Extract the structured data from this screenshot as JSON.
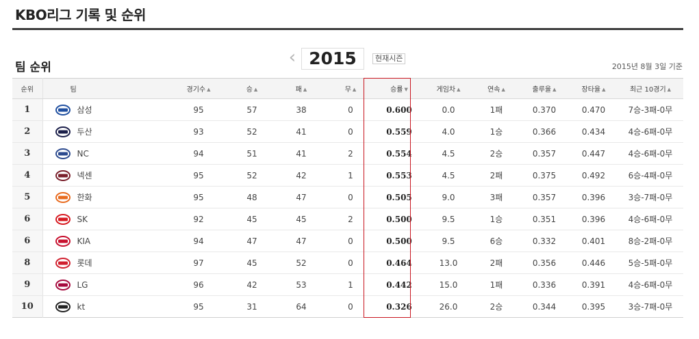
{
  "header": {
    "title": "KBO리그 기록 및 순위"
  },
  "section": {
    "title": "팀 순위",
    "season": "2015",
    "current_season_label": "현재시즌",
    "prev_icon": "chevron-left-icon",
    "next_icon": "chevron-right-icon",
    "as_of": "2015년 8월 3일 기준"
  },
  "accent": {
    "highlight": "#c8141e",
    "rule": "#3b3b3b"
  },
  "table": {
    "columns": {
      "rank": "순위",
      "team": "팀",
      "games": "경기수",
      "wins": "승",
      "losses": "패",
      "draws": "무",
      "pct": "승률",
      "gb": "게임차",
      "streak": "연속",
      "obp": "출루율",
      "slg": "장타율",
      "last10": "최근 10경기"
    },
    "rows": [
      {
        "rank": "1",
        "team": "삼성",
        "logo": "samsung-lions-logo",
        "logo_color": "#1f4fa0",
        "games": "95",
        "wins": "57",
        "losses": "38",
        "draws": "0",
        "pct": "0.600",
        "gb": "0.0",
        "streak": "1패",
        "obp": "0.370",
        "slg": "0.470",
        "last10": "7승-3패-0무"
      },
      {
        "rank": "2",
        "team": "두산",
        "logo": "doosan-bears-logo",
        "logo_color": "#1b1f4a",
        "games": "93",
        "wins": "52",
        "losses": "41",
        "draws": "0",
        "pct": "0.559",
        "gb": "4.0",
        "streak": "1승",
        "obp": "0.366",
        "slg": "0.434",
        "last10": "4승-6패-0무"
      },
      {
        "rank": "3",
        "team": "NC",
        "logo": "nc-dinos-logo",
        "logo_color": "#2d4b8f",
        "games": "94",
        "wins": "51",
        "losses": "41",
        "draws": "2",
        "pct": "0.554",
        "gb": "4.5",
        "streak": "2승",
        "obp": "0.357",
        "slg": "0.447",
        "last10": "4승-6패-0무"
      },
      {
        "rank": "4",
        "team": "넥센",
        "logo": "nexen-heroes-logo",
        "logo_color": "#7a1f2b",
        "games": "95",
        "wins": "52",
        "losses": "42",
        "draws": "1",
        "pct": "0.553",
        "gb": "4.5",
        "streak": "2패",
        "obp": "0.375",
        "slg": "0.492",
        "last10": "6승-4패-0무"
      },
      {
        "rank": "5",
        "team": "한화",
        "logo": "hanwha-eagles-logo",
        "logo_color": "#e86a1d",
        "games": "95",
        "wins": "48",
        "losses": "47",
        "draws": "0",
        "pct": "0.505",
        "gb": "9.0",
        "streak": "3패",
        "obp": "0.357",
        "slg": "0.396",
        "last10": "3승-7패-0무"
      },
      {
        "rank": "6",
        "team": "SK",
        "logo": "sk-wyverns-logo",
        "logo_color": "#d71920",
        "games": "92",
        "wins": "45",
        "losses": "45",
        "draws": "2",
        "pct": "0.500",
        "gb": "9.5",
        "streak": "1승",
        "obp": "0.351",
        "slg": "0.396",
        "last10": "4승-6패-0무"
      },
      {
        "rank": "6",
        "team": "KIA",
        "logo": "kia-tigers-logo",
        "logo_color": "#c8102e",
        "games": "94",
        "wins": "47",
        "losses": "47",
        "draws": "0",
        "pct": "0.500",
        "gb": "9.5",
        "streak": "6승",
        "obp": "0.332",
        "slg": "0.401",
        "last10": "8승-2패-0무"
      },
      {
        "rank": "8",
        "team": "롯데",
        "logo": "lotte-giants-logo",
        "logo_color": "#d1202f",
        "games": "97",
        "wins": "45",
        "losses": "52",
        "draws": "0",
        "pct": "0.464",
        "gb": "13.0",
        "streak": "2패",
        "obp": "0.356",
        "slg": "0.446",
        "last10": "5승-5패-0무"
      },
      {
        "rank": "9",
        "team": "LG",
        "logo": "lg-twins-logo",
        "logo_color": "#a6093d",
        "games": "96",
        "wins": "42",
        "losses": "53",
        "draws": "1",
        "pct": "0.442",
        "gb": "15.0",
        "streak": "1패",
        "obp": "0.336",
        "slg": "0.391",
        "last10": "4승-6패-0무"
      },
      {
        "rank": "10",
        "team": "kt",
        "logo": "kt-wiz-logo",
        "logo_color": "#222222",
        "games": "95",
        "wins": "31",
        "losses": "64",
        "draws": "0",
        "pct": "0.326",
        "gb": "26.0",
        "streak": "2승",
        "obp": "0.344",
        "slg": "0.395",
        "last10": "3승-7패-0무"
      }
    ]
  }
}
